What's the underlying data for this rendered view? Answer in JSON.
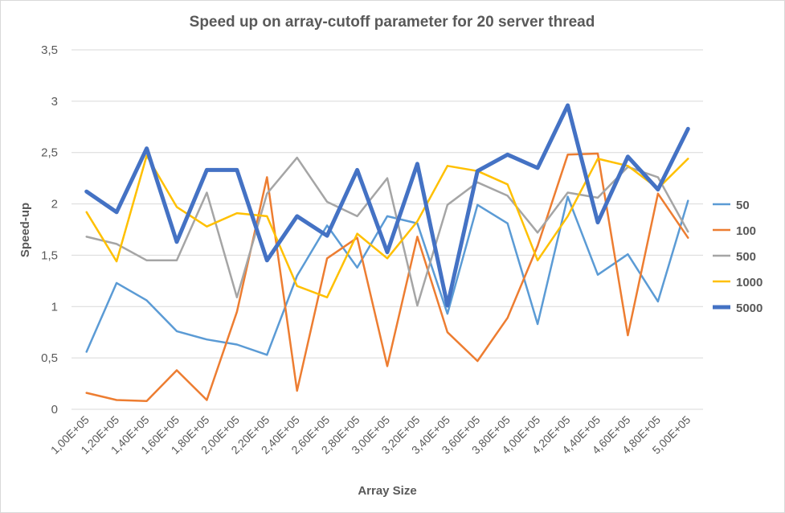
{
  "chart_data": {
    "type": "line",
    "title": "Speed up on array-cutoff parameter for 20 server thread",
    "xlabel": "Array Size",
    "ylabel": "Speed-up",
    "ylim": [
      0,
      3.5
    ],
    "yticks": [
      "0",
      "0,5",
      "1",
      "1,5",
      "2",
      "2,5",
      "3",
      "3,5"
    ],
    "grid": true,
    "legend_position": "right",
    "categories": [
      "1,00E+05",
      "1,20E+05",
      "1,40E+05",
      "1,60E+05",
      "1,80E+05",
      "2,00E+05",
      "2,20E+05",
      "2,40E+05",
      "2,60E+05",
      "2,80E+05",
      "3,00E+05",
      "3,20E+05",
      "3,40E+05",
      "3,60E+05",
      "3,80E+05",
      "4,00E+05",
      "4,20E+05",
      "4,40E+05",
      "4,60E+05",
      "4,80E+05",
      "5,00E+05"
    ],
    "series": [
      {
        "name": "50",
        "color": "#5b9bd5",
        "values": [
          0.56,
          1.23,
          1.06,
          0.76,
          0.68,
          0.63,
          0.53,
          1.3,
          1.79,
          1.38,
          1.88,
          1.81,
          0.93,
          1.99,
          1.81,
          0.83,
          2.07,
          1.31,
          1.51,
          1.05,
          2.03
        ]
      },
      {
        "name": "100",
        "color": "#ed7d31",
        "values": [
          0.16,
          0.09,
          0.08,
          0.38,
          0.09,
          0.95,
          2.26,
          0.18,
          1.47,
          1.67,
          0.42,
          1.68,
          0.75,
          0.47,
          0.89,
          1.59,
          2.48,
          2.49,
          0.72,
          2.1,
          1.67
        ]
      },
      {
        "name": "500",
        "color": "#a5a5a5",
        "values": [
          1.68,
          1.61,
          1.45,
          1.45,
          2.11,
          1.09,
          2.1,
          2.45,
          2.02,
          1.88,
          2.25,
          1.01,
          1.99,
          2.21,
          2.08,
          1.72,
          2.11,
          2.06,
          2.36,
          2.26,
          1.73
        ]
      },
      {
        "name": "1000",
        "color": "#ffc000",
        "values": [
          1.92,
          1.44,
          2.47,
          1.97,
          1.78,
          1.91,
          1.88,
          1.2,
          1.09,
          1.71,
          1.47,
          1.83,
          2.37,
          2.32,
          2.19,
          1.45,
          1.88,
          2.44,
          2.37,
          2.15,
          2.44
        ]
      },
      {
        "name": "5000",
        "color": "#4472c4",
        "values": [
          2.12,
          1.92,
          2.54,
          1.63,
          2.33,
          2.33,
          1.45,
          1.88,
          1.69,
          2.33,
          1.53,
          2.39,
          1.01,
          2.32,
          2.48,
          2.35,
          2.96,
          1.82,
          2.46,
          2.14,
          2.73
        ]
      }
    ]
  }
}
